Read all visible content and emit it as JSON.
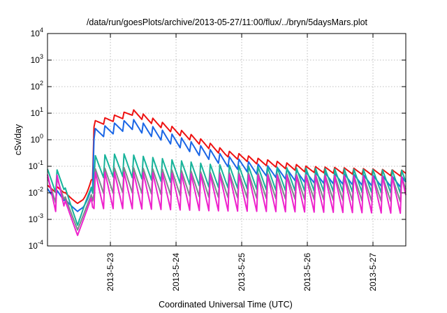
{
  "chart_data": {
    "type": "line",
    "title": "/data/run/goesPlots/archive/2013-05-27/11:00/flux/../bryn/5daysMars.plot",
    "xlabel": "Coordinated Universal Time (UTC)",
    "ylabel": "cSv/day",
    "x_range": [
      "2013-05-22 01:00",
      "2013-05-27 12:00"
    ],
    "ylim": [
      0.0001,
      10000
    ],
    "yscale": "log",
    "grid": true,
    "legend": "none",
    "x_ticks": [
      "2013-5-23",
      "2013-5-24",
      "2013-5-25",
      "2013-5-26",
      "2013-5-27"
    ],
    "y_ticks": [
      {
        "base": "10",
        "exp": "-4"
      },
      {
        "base": "10",
        "exp": "-3"
      },
      {
        "base": "10",
        "exp": "-2"
      },
      {
        "base": "10",
        "exp": "-1"
      },
      {
        "base": "10",
        "exp": "0"
      },
      {
        "base": "10",
        "exp": "1"
      },
      {
        "base": "10",
        "exp": "2"
      },
      {
        "base": "10",
        "exp": "3"
      },
      {
        "base": "10",
        "exp": "4"
      }
    ],
    "series": [
      {
        "color": "#ee1111",
        "peaks": [
          [
            "2013-05-22 00:00",
            0.02
          ],
          [
            "2013-05-22 14:00",
            0.012
          ],
          [
            "2013-05-22 17:30",
            0.05
          ],
          [
            "2013-05-22 17:45",
            5
          ],
          [
            "2013-05-23 04:00",
            10
          ],
          [
            "2013-05-23 08:00",
            14
          ],
          [
            "2013-05-23 18:00",
            5
          ],
          [
            "2013-05-24 06:00",
            1.5
          ],
          [
            "2013-05-24 18:00",
            0.4
          ],
          [
            "2013-05-25 06:00",
            0.2
          ],
          [
            "2013-05-26 00:00",
            0.1
          ],
          [
            "2013-05-27 12:00",
            0.07
          ]
        ],
        "sawtooth_min_ratio": 0.55,
        "dips": [
          [
            "2013-05-22 12:00",
            0.004
          ]
        ]
      },
      {
        "color": "#1a66e6",
        "peaks": [
          [
            "2013-05-22 00:00",
            0.015
          ],
          [
            "2013-05-22 14:00",
            0.008
          ],
          [
            "2013-05-22 17:30",
            0.03
          ],
          [
            "2013-05-22 17:45",
            2.5
          ],
          [
            "2013-05-23 04:00",
            5
          ],
          [
            "2013-05-23 08:00",
            6
          ],
          [
            "2013-05-23 18:00",
            2.5
          ],
          [
            "2013-05-24 06:00",
            0.8
          ],
          [
            "2013-05-24 18:00",
            0.25
          ],
          [
            "2013-05-25 06:00",
            0.12
          ],
          [
            "2013-05-26 00:00",
            0.06
          ],
          [
            "2013-05-27 12:00",
            0.04
          ]
        ],
        "sawtooth_min_ratio": 0.35,
        "dips": [
          [
            "2013-05-22 12:00",
            0.002
          ]
        ]
      },
      {
        "color": "#17b39a",
        "peaks": [
          [
            "2013-05-22 00:00",
            0.08
          ],
          [
            "2013-05-22 14:00",
            0.06
          ],
          [
            "2013-05-22 17:30",
            0.05
          ],
          [
            "2013-05-22 17:45",
            0.25
          ],
          [
            "2013-05-23 04:00",
            0.3
          ],
          [
            "2013-05-23 18:00",
            0.2
          ],
          [
            "2013-05-24 12:00",
            0.12
          ],
          [
            "2013-05-25 12:00",
            0.09
          ],
          [
            "2013-05-27 12:00",
            0.07
          ]
        ],
        "sawtooth_min_ratio": 0.1,
        "dips": [
          [
            "2013-05-22 12:00",
            0.0006
          ]
        ]
      },
      {
        "color": "#7a8a8a",
        "peaks": [
          [
            "2013-05-22 00:00",
            0.04
          ],
          [
            "2013-05-22 14:00",
            0.03
          ],
          [
            "2013-05-22 17:30",
            0.03
          ],
          [
            "2013-05-22 17:45",
            0.08
          ],
          [
            "2013-05-23 06:00",
            0.09
          ],
          [
            "2013-05-24 12:00",
            0.06
          ],
          [
            "2013-05-27 12:00",
            0.04
          ]
        ],
        "sawtooth_min_ratio": 0.08,
        "dips": [
          [
            "2013-05-22 12:00",
            0.0004
          ]
        ]
      },
      {
        "color": "#ee22cc",
        "peaks": [
          [
            "2013-05-22 00:00",
            0.05
          ],
          [
            "2013-05-22 14:00",
            0.04
          ],
          [
            "2013-05-22 17:30",
            0.04
          ],
          [
            "2013-05-22 17:45",
            0.06
          ],
          [
            "2013-05-23 06:00",
            0.06
          ],
          [
            "2013-05-24 12:00",
            0.05
          ],
          [
            "2013-05-27 12:00",
            0.04
          ]
        ],
        "sawtooth_min_ratio": 0.025,
        "dips": [
          [
            "2013-05-22 12:00",
            0.00025
          ]
        ]
      }
    ],
    "cycle_hours": 3.5
  }
}
